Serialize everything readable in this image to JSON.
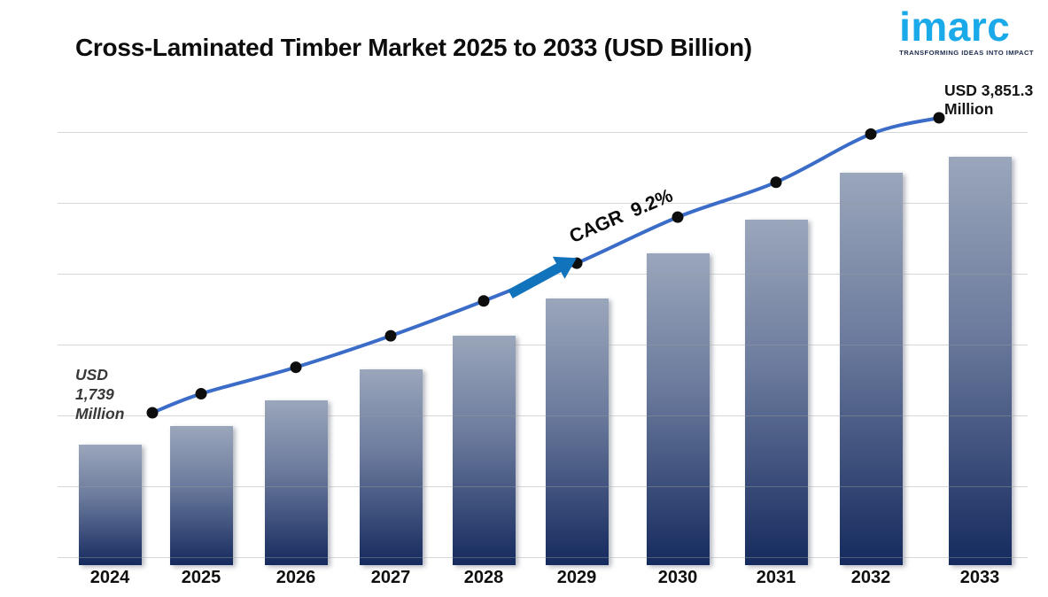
{
  "header": {
    "title": "Cross-Laminated Timber Market 2025 to 2033 (USD Billion)",
    "logo": {
      "text": "imarc",
      "tagline": "TRANSFORMING IDEAS INTO IMPACT",
      "color": "#1aa9e9",
      "tagline_color": "#1d2b4f"
    }
  },
  "chart_data": {
    "type": "bar",
    "subtype": "bar-with-trend-line",
    "title": "Cross-Laminated Timber Market 2025 to 2033 (USD Billion)",
    "unit": "USD Million",
    "categories": [
      "2024",
      "2025",
      "2026",
      "2027",
      "2028",
      "2029",
      "2030",
      "2031",
      "2032",
      "2033"
    ],
    "values": [
      1739,
      1875,
      2065,
      2290,
      2540,
      2810,
      3140,
      3390,
      3735,
      3851.3
    ],
    "values_estimated": true,
    "cagr_percent": 9.2,
    "xlabel": "",
    "ylabel": "",
    "grid": true,
    "legend": false,
    "annotations": {
      "start_label": "USD 1,739 Million",
      "start_label_lines": [
        "USD",
        "1,739",
        "Million"
      ],
      "end_label": "USD 3,851.3 Million",
      "end_label_lines": [
        "USD 3,851.3",
        "Million"
      ],
      "cagr_label": "CAGR  9.2%"
    },
    "colors": {
      "bar_top": "#9aa6bb",
      "bar_mid": "#6d7c9e",
      "bar_bottom": "#152a5e",
      "line": "#3a6cc8",
      "dot": "#0d0d0d",
      "arrow": "#1273bd",
      "gridline": "#9d9d9d"
    }
  }
}
